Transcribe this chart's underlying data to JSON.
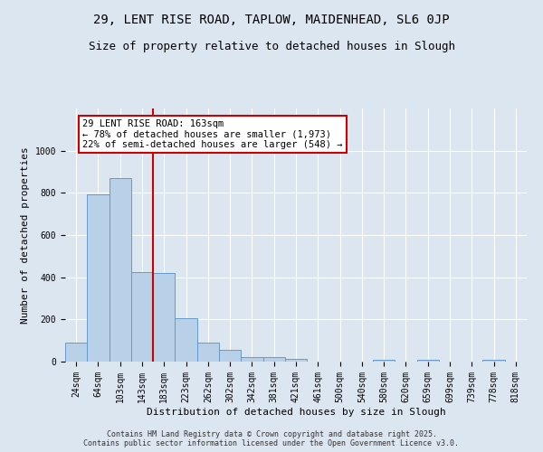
{
  "title_line1": "29, LENT RISE ROAD, TAPLOW, MAIDENHEAD, SL6 0JP",
  "title_line2": "Size of property relative to detached houses in Slough",
  "xlabel": "Distribution of detached houses by size in Slough",
  "ylabel": "Number of detached properties",
  "categories": [
    "24sqm",
    "64sqm",
    "103sqm",
    "143sqm",
    "183sqm",
    "223sqm",
    "262sqm",
    "302sqm",
    "342sqm",
    "381sqm",
    "421sqm",
    "461sqm",
    "500sqm",
    "540sqm",
    "580sqm",
    "620sqm",
    "659sqm",
    "699sqm",
    "739sqm",
    "778sqm",
    "818sqm"
  ],
  "values": [
    90,
    795,
    870,
    425,
    420,
    205,
    90,
    55,
    22,
    20,
    15,
    0,
    0,
    0,
    8,
    0,
    8,
    0,
    0,
    8,
    0
  ],
  "bar_color": "#b8d0e8",
  "bar_edge_color": "#6699cc",
  "vline_color": "#cc0000",
  "annotation_text": "29 LENT RISE ROAD: 163sqm\n← 78% of detached houses are smaller (1,973)\n22% of semi-detached houses are larger (548) →",
  "ylim": [
    0,
    1200
  ],
  "yticks": [
    0,
    200,
    400,
    600,
    800,
    1000
  ],
  "background_color": "#dce6f1",
  "grid_color": "#ffffff",
  "footer_line1": "Contains HM Land Registry data © Crown copyright and database right 2025.",
  "footer_line2": "Contains public sector information licensed under the Open Government Licence v3.0.",
  "title1_fontsize": 10,
  "title2_fontsize": 9,
  "axis_label_fontsize": 8,
  "tick_fontsize": 7,
  "annotation_fontsize": 7.5
}
